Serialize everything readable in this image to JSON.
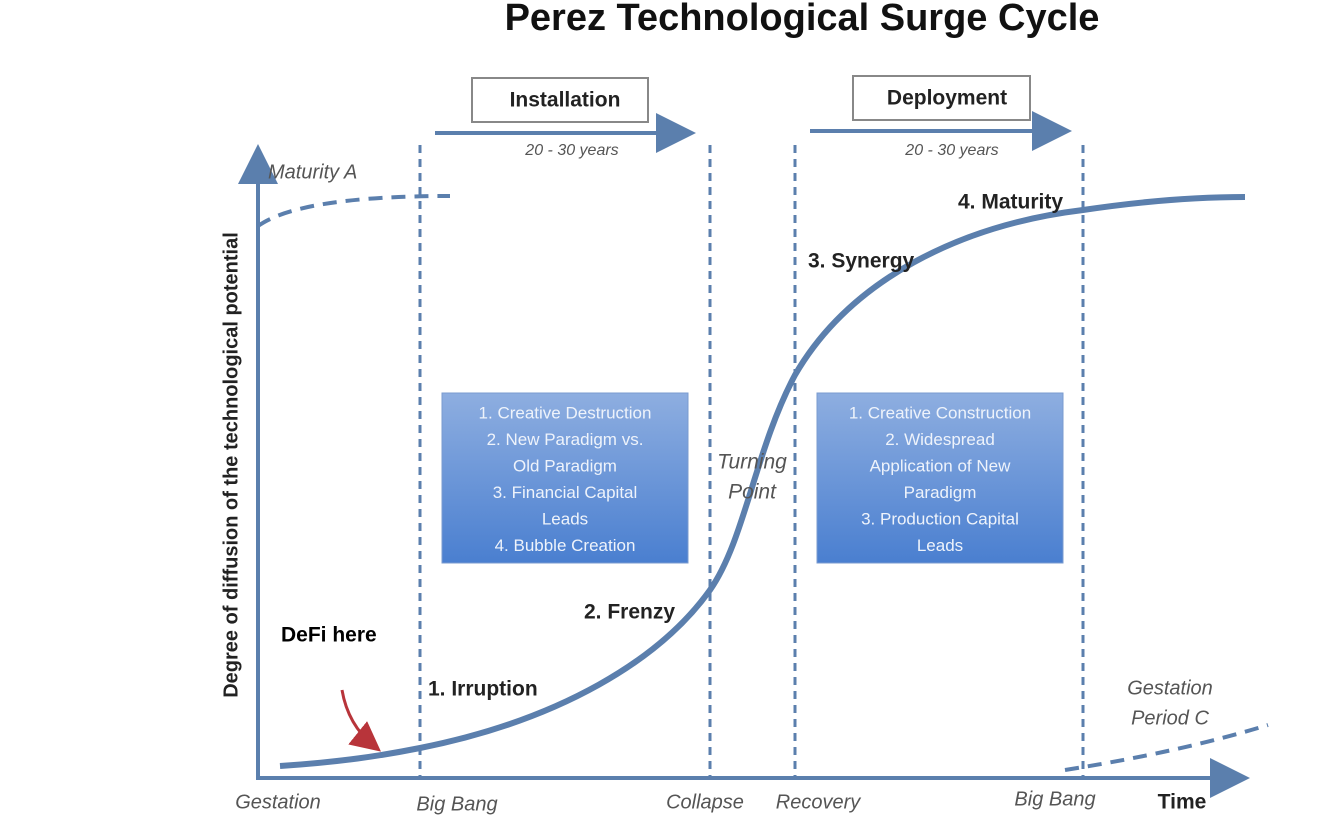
{
  "title": "Perez Technological Surge Cycle",
  "y_axis_label": "Degree of diffusion of the technological potential",
  "x_axis_label": "Time",
  "periods": [
    {
      "label": "Installation",
      "duration": "20 - 30 years",
      "characteristics": [
        "1. Creative Destruction",
        "2. New Paradigm vs.",
        "Old Paradigm",
        "3. Financial Capital",
        "Leads",
        "4. Bubble Creation"
      ]
    },
    {
      "label": "Deployment",
      "duration": "20 - 30 years",
      "characteristics": [
        "1. Creative Construction",
        "2. Widespread",
        "Application of New",
        "Paradigm",
        "3. Production Capital",
        "Leads"
      ]
    }
  ],
  "phases": [
    "1. Irruption",
    "2. Frenzy",
    "3. Synergy",
    "4. Maturity"
  ],
  "turning_point": [
    "Turning",
    "Point"
  ],
  "previous_maturity": "Maturity A",
  "next_gestation": [
    "Gestation",
    "Period C"
  ],
  "events": [
    "Gestation",
    "Big Bang",
    "Collapse",
    "Recovery",
    "Big Bang"
  ],
  "annotation": "DeFi here"
}
